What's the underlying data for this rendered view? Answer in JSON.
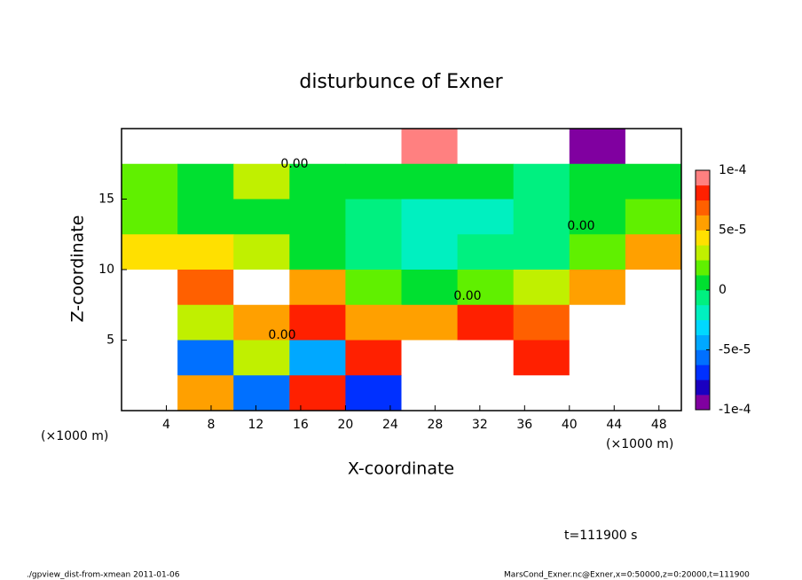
{
  "chart_data": {
    "type": "heatmap",
    "title": "disturbunce of Exner",
    "x_label": "X-coordinate",
    "y_label": "Z-coordinate",
    "x_unit": "(×1000 m)",
    "x_unit_right": "(×1000 m)",
    "time_label": "t=111900 s",
    "footer_left": "./gpview_dist-from-xmean  2011-01-06",
    "footer_right": "MarsCond_Exner.nc@Exner,x=0:50000,z=0:20000,t=111900",
    "annotations": [
      "0.00",
      "0.00",
      "0.00",
      "0.00"
    ],
    "xlim": [
      0,
      50
    ],
    "ylim": [
      0,
      20
    ],
    "xticks": [
      4,
      8,
      12,
      16,
      20,
      24,
      28,
      32,
      36,
      40,
      44,
      48
    ],
    "yticks": [
      5,
      10,
      15
    ],
    "x": [
      2.5,
      7.5,
      12.5,
      17.5,
      22.5,
      27.5,
      32.5,
      37.5,
      42.5,
      47.5
    ],
    "y": [
      18.75,
      16.25,
      13.75,
      11.25,
      8.75,
      6.25,
      3.75,
      1.25
    ],
    "z": [
      [
        0.00015,
        0.00015,
        0.00015,
        0.00015,
        0.00015,
        9e-05,
        0.00015,
        0.00015,
        -9e-05,
        0.00015
      ],
      [
        2e-05,
        1e-05,
        3e-05,
        1e-05,
        0,
        0,
        0,
        -1e-05,
        0,
        1e-05
      ],
      [
        2e-05,
        1e-05,
        1e-05,
        0,
        -1e-05,
        -2e-05,
        -2e-05,
        -1e-05,
        1e-05,
        2e-05
      ],
      [
        4e-05,
        4e-05,
        3e-05,
        1e-05,
        -1e-05,
        -2e-05,
        -1e-05,
        -1e-05,
        2e-05,
        5e-05
      ],
      [
        0.00015,
        7e-05,
        0.00015,
        5e-05,
        2e-05,
        1e-05,
        2e-05,
        3e-05,
        6e-05,
        0.00015
      ],
      [
        -0.00015,
        3e-05,
        6e-05,
        8e-05,
        6e-05,
        5e-05,
        8e-05,
        7e-05,
        0.00015,
        0.00015
      ],
      [
        -0.00015,
        -6e-05,
        3e-05,
        -5e-05,
        8e-05,
        0.00015,
        0.00015,
        8e-05,
        0.00015,
        -0.00015
      ],
      [
        -0.00015,
        5e-05,
        -6e-05,
        8e-05,
        -7e-05,
        0.00015,
        0.00015,
        0.00015,
        0.00015,
        0.00015
      ]
    ],
    "clim": [
      -0.0001,
      0.0001
    ],
    "cticks": [
      {
        "value": 0.0001,
        "label": "1e-4"
      },
      {
        "value": 5e-05,
        "label": "5e-5"
      },
      0,
      {
        "value": -5e-05,
        "label": "-5e-5"
      },
      {
        "value": -0.0001,
        "label": "-1e-4"
      }
    ],
    "colors": [
      "#8000a0",
      "#1a00c0",
      "#0030ff",
      "#0070ff",
      "#00a8ff",
      "#00d8ff",
      "#00f0c0",
      "#00f080",
      "#00e030",
      "#60f000",
      "#c0f000",
      "#ffe000",
      "#ffa000",
      "#ff6000",
      "#ff2000",
      "#ff8080"
    ],
    "out_of_range_color": "#ffffff"
  }
}
